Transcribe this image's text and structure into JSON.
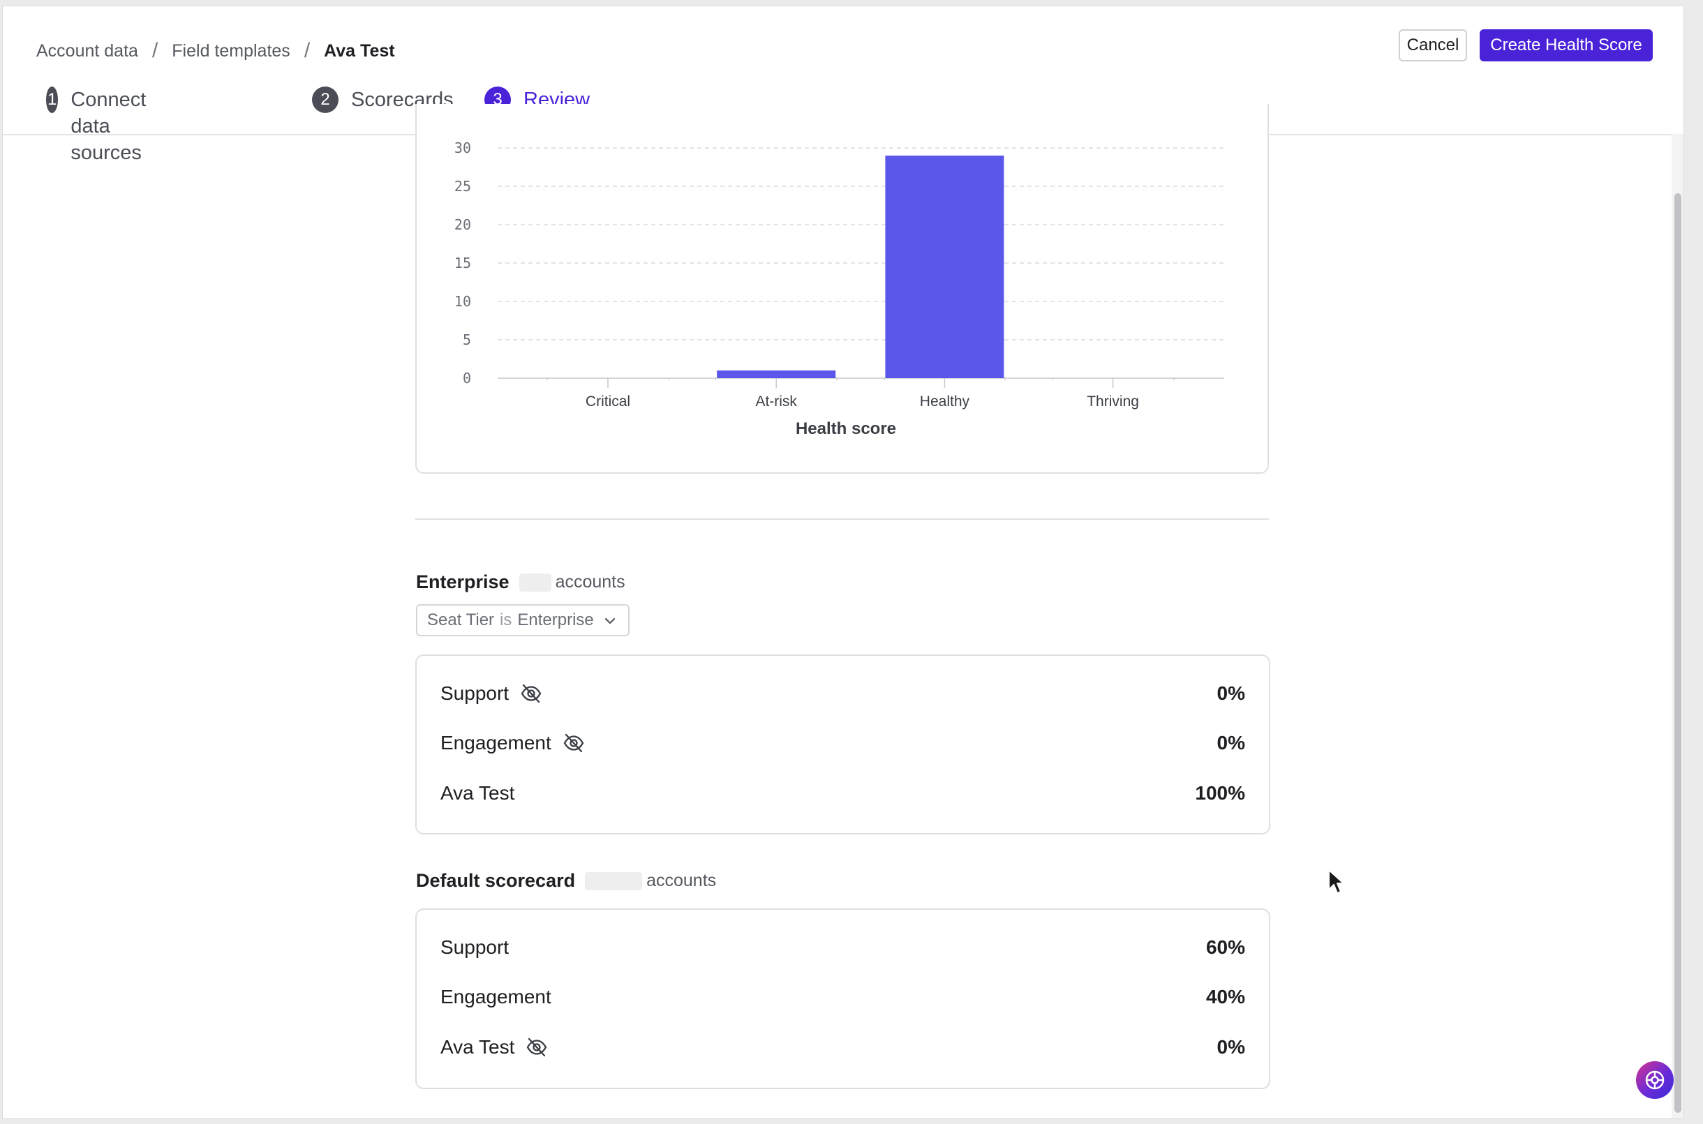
{
  "breadcrumb": [
    "Account data",
    "Field templates",
    "Ava Test"
  ],
  "header": {
    "cancel_label": "Cancel",
    "create_label": "Create Health Score"
  },
  "steps": [
    {
      "num": "1",
      "label": "Connect data sources"
    },
    {
      "num": "2",
      "label": "Scorecards"
    },
    {
      "num": "3",
      "label": "Review"
    }
  ],
  "chart_data": {
    "type": "bar",
    "categories": [
      "Critical",
      "At-risk",
      "Healthy",
      "Thriving"
    ],
    "values": [
      0,
      1,
      29,
      0
    ],
    "xlabel": "Health score",
    "ylabel": "",
    "ylim": [
      0,
      30
    ],
    "yticks": [
      "0",
      "5",
      "10",
      "15",
      "20",
      "25",
      "30"
    ],
    "grid": true,
    "bar_color": "#5b57eb"
  },
  "enterprise": {
    "name": "Enterprise",
    "accounts_label": "accounts",
    "filter": {
      "field": "Seat Tier",
      "op": "is",
      "value": "Enterprise"
    },
    "weights": [
      {
        "name": "Support",
        "value": "0%",
        "hidden": true
      },
      {
        "name": "Engagement",
        "value": "0%",
        "hidden": true
      },
      {
        "name": "Ava Test",
        "value": "100%",
        "hidden": false
      }
    ]
  },
  "default_scorecard": {
    "name": "Default scorecard",
    "accounts_label": "accounts",
    "weights": [
      {
        "name": "Support",
        "value": "60%",
        "hidden": false
      },
      {
        "name": "Engagement",
        "value": "40%",
        "hidden": false
      },
      {
        "name": "Ava Test",
        "value": "0%",
        "hidden": true
      }
    ]
  },
  "colors": {
    "accent": "#4a23d9",
    "bar": "#5b57eb"
  },
  "icons": {
    "hidden": "eye-off-icon",
    "chevron": "chevron-down-icon",
    "help": "help-widget-icon",
    "cursor": "mouse-cursor-icon"
  }
}
